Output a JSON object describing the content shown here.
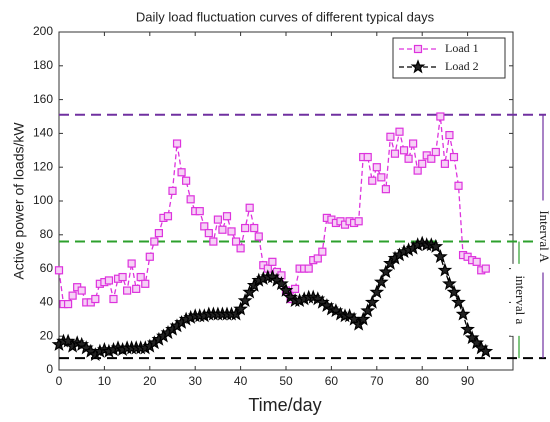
{
  "chart_data": {
    "type": "line",
    "title": "Daily load fluctuation curves of different typical days",
    "x_label": "Time/day",
    "y_label": "Active power of loads/kW",
    "xlim": [
      0,
      100
    ],
    "ylim": [
      0,
      200
    ],
    "xticks": [
      0,
      10,
      20,
      30,
      40,
      50,
      60,
      70,
      80,
      90
    ],
    "yticks": [
      0,
      20,
      40,
      60,
      80,
      100,
      120,
      140,
      160,
      180,
      200
    ],
    "legend": "upper right",
    "x": [
      0,
      1,
      2,
      3,
      4,
      5,
      6,
      7,
      8,
      9,
      10,
      11,
      12,
      13,
      14,
      15,
      16,
      17,
      18,
      19,
      20,
      21,
      22,
      23,
      24,
      25,
      26,
      27,
      28,
      29,
      30,
      31,
      32,
      33,
      34,
      35,
      36,
      37,
      38,
      39,
      40,
      41,
      42,
      43,
      44,
      45,
      46,
      47,
      48,
      49,
      50,
      51,
      52,
      53,
      54,
      55,
      56,
      57,
      58,
      59,
      60,
      61,
      62,
      63,
      64,
      65,
      66,
      67,
      68,
      69,
      70,
      71,
      72,
      73,
      74,
      75,
      76,
      77,
      78,
      79,
      80,
      81,
      82,
      83,
      84,
      85,
      86,
      87,
      88,
      89,
      90,
      91,
      92,
      93,
      94
    ],
    "series": [
      {
        "name": "Load 1",
        "color": "#dd33dd",
        "marker": "square",
        "values": [
          59,
          39,
          39,
          44,
          49,
          47,
          40,
          40,
          42,
          51,
          52,
          53,
          42,
          54,
          55,
          47,
          63,
          48,
          55,
          51,
          67,
          76,
          81,
          90,
          91,
          106,
          134,
          117,
          112,
          101,
          94,
          94,
          85,
          81,
          76,
          89,
          83,
          91,
          82,
          76,
          72,
          84,
          96,
          84,
          79,
          62,
          60,
          64,
          58,
          56,
          47,
          42,
          48,
          60,
          60,
          60,
          65,
          66,
          70,
          90,
          89,
          87,
          88,
          86,
          88,
          87,
          88,
          126,
          126,
          112,
          120,
          114,
          107,
          138,
          128,
          141,
          130,
          125,
          134,
          118,
          122,
          127,
          125,
          129,
          150,
          122,
          139,
          126,
          109,
          68,
          67,
          65,
          64,
          59,
          60
        ]
      },
      {
        "name": "Load 2",
        "color": "#000000",
        "marker": "star",
        "values": [
          15,
          17,
          17,
          14,
          16,
          15,
          13,
          11,
          9,
          11,
          12,
          11,
          12,
          13,
          12,
          13,
          13,
          13,
          13,
          13,
          14,
          16,
          18,
          20,
          22,
          24,
          26,
          28,
          30,
          31,
          32,
          32,
          32,
          33,
          33,
          33,
          33,
          33,
          33,
          33,
          36,
          41,
          46,
          50,
          53,
          54,
          55,
          55,
          53,
          51,
          47,
          43,
          41,
          41,
          42,
          43,
          43,
          42,
          40,
          38,
          36,
          35,
          33,
          32,
          32,
          30,
          27,
          30,
          35,
          40,
          46,
          52,
          58,
          63,
          66,
          68,
          70,
          71,
          72,
          74,
          75,
          74,
          74,
          73,
          67,
          59,
          51,
          46,
          40,
          33,
          24,
          19,
          16,
          13,
          11
        ]
      }
    ],
    "reference_lines": [
      {
        "value": 151,
        "color": "#7030a0"
      },
      {
        "value": 76,
        "color": "#2ca02c"
      },
      {
        "value": 7,
        "color": "#000000"
      }
    ],
    "intervals": [
      {
        "label": "Interval A",
        "from": 151,
        "to": 7,
        "color": "#7030a0"
      },
      {
        "label": "interval a",
        "from": 76,
        "to": 7,
        "color": "#2ca02c"
      }
    ]
  }
}
